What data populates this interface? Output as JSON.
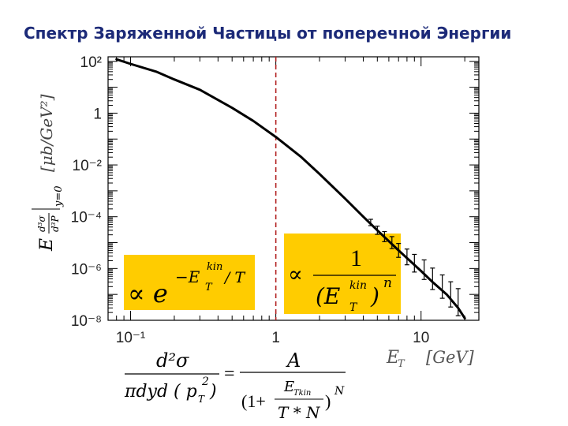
{
  "slide": {
    "title": "Спектр Заряженной Частицы от поперечной Энергии"
  },
  "chart_data": {
    "type": "line",
    "title": "",
    "xscale": "log",
    "yscale": "log",
    "xlim": [
      0.07,
      25
    ],
    "ylim": [
      1e-08,
      150
    ],
    "xticks": [
      {
        "value": 0.1,
        "label": "10⁻¹"
      },
      {
        "value": 1,
        "label": "1"
      },
      {
        "value": 10,
        "label": "10"
      }
    ],
    "yticks": [
      {
        "value": 100,
        "label": "10²"
      },
      {
        "value": 1,
        "label": "1"
      },
      {
        "value": 0.01,
        "label": "10⁻²"
      },
      {
        "value": 0.0001,
        "label": "10⁻⁴"
      },
      {
        "value": 1e-06,
        "label": "10⁻⁶"
      },
      {
        "value": 1e-08,
        "label": "10⁻⁸"
      }
    ],
    "xlabel_main": "E",
    "xlabel_sub": "T",
    "xlabel_unit": "[GeV]",
    "ylabel": {
      "lhs": "E",
      "num": "d³σ",
      "den": "d³P",
      "cond": "y=0",
      "unit": "[μb/GeV²]"
    },
    "series": [
      {
        "color": "#000000",
        "x": [
          0.08,
          0.1,
          0.15,
          0.2,
          0.3,
          0.5,
          0.7,
          1.0,
          1.5,
          2.0,
          3.0,
          4.0,
          5.0,
          7.0,
          10.0,
          12.0,
          15.0,
          18.0,
          20.0
        ],
        "y": [
          120,
          80,
          40,
          20,
          8,
          1.6,
          0.5,
          0.12,
          0.02,
          0.0045,
          0.0005,
          0.0001,
          3e-05,
          5e-06,
          8e-07,
          3e-07,
          1e-07,
          3e-08,
          1.2e-08
        ]
      }
    ],
    "error_points": {
      "x": [
        4.5,
        5.0,
        5.6,
        6.3,
        7.0,
        8.0,
        9.0,
        10.5,
        12.0,
        14.0,
        16.0,
        18.0
      ],
      "y": [
        6e-05,
        3e-05,
        1.7e-05,
        1e-05,
        5e-06,
        2.8e-06,
        1.6e-06,
        9e-07,
        4e-07,
        2e-07,
        1e-07,
        5e-08
      ]
    },
    "marker_line": {
      "x": 1.0,
      "color": "#b22222",
      "style": "dashed"
    },
    "annotations": {
      "left_box": {
        "prefix": "∝ e",
        "exp_minus": "−E",
        "exp_sup": "kin",
        "exp_sub": "T",
        "exp_tail": "/ T",
        "fill": "#ffcc00"
      },
      "right_box": {
        "prefix": "∝",
        "numerator": "1",
        "den_open": "(E",
        "den_sup": "kin",
        "den_sub": "T",
        "den_close": ")",
        "den_pow": "n",
        "fill": "#ffcc00"
      }
    }
  },
  "formula": {
    "lhs_num": "d²σ",
    "lhs_den_a": "πdyd",
    "lhs_den_p": "( p",
    "lhs_den_sub": "T",
    "lhs_den_sup": "2",
    "lhs_den_close": ")",
    "equals": "=",
    "rhs_num": "A",
    "rhs_den_open": "(1+",
    "rhs_inner_num": "E",
    "rhs_inner_sub": "Tkin",
    "rhs_inner_den": "T * N",
    "rhs_den_close": ")",
    "rhs_pow": "N"
  }
}
